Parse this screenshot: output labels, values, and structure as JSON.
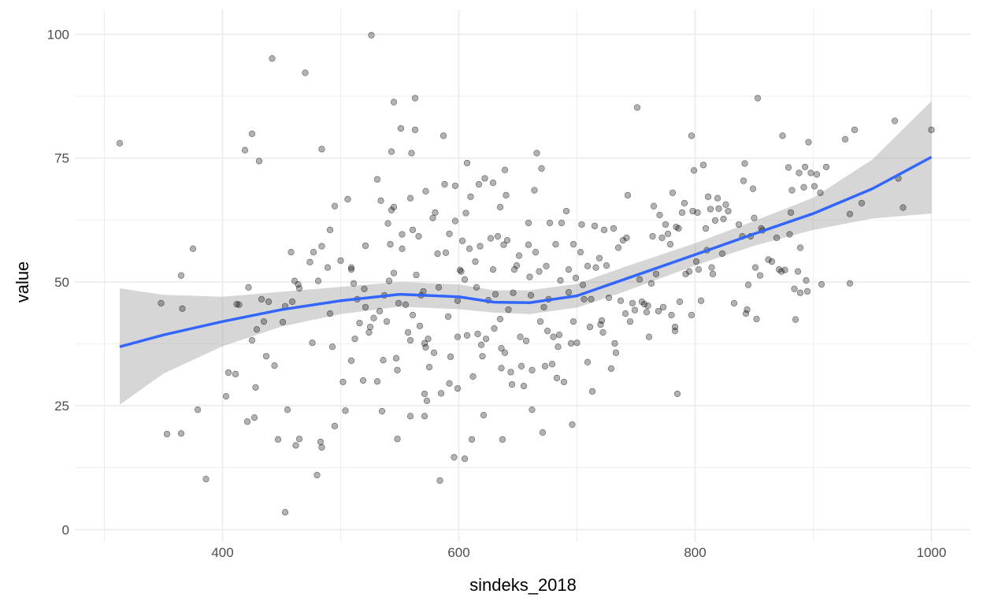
{
  "chart_data": {
    "type": "scatter",
    "title": "",
    "xlabel": "sindeks_2018",
    "ylabel": "value",
    "xlim": [
      275,
      1033
    ],
    "ylim": [
      -2.5,
      105
    ],
    "xticks": [
      400,
      600,
      800,
      1000
    ],
    "yticks": [
      0,
      25,
      50,
      75,
      100
    ],
    "xtick_labels": [
      "400",
      "600",
      "800",
      "1000"
    ],
    "ytick_labels": [
      "0",
      "25",
      "50",
      "75",
      "100"
    ],
    "grid": true,
    "legend": "none",
    "colors": {
      "points": "#000000",
      "smooth": "#3366FF",
      "band": "#999999",
      "grid": "#ebebeb"
    },
    "points": [
      [
        313,
        78
      ],
      [
        348,
        45.7
      ],
      [
        353,
        19.3
      ],
      [
        365,
        19.4
      ],
      [
        365,
        51.3
      ],
      [
        366,
        44.6
      ],
      [
        375,
        56.7
      ],
      [
        379,
        24.2
      ],
      [
        386,
        10.2
      ],
      [
        403,
        26.9
      ],
      [
        405,
        31.7
      ],
      [
        411,
        31.4
      ],
      [
        412,
        45.5
      ],
      [
        414,
        45.4
      ],
      [
        419,
        76.6
      ],
      [
        421,
        21.8
      ],
      [
        422,
        48.9
      ],
      [
        425,
        38.2
      ],
      [
        425,
        79.9
      ],
      [
        427,
        22.6
      ],
      [
        428,
        28.7
      ],
      [
        429,
        40.4
      ],
      [
        431,
        74.4
      ],
      [
        433,
        46.5
      ],
      [
        435,
        42
      ],
      [
        437,
        35
      ],
      [
        439,
        46
      ],
      [
        442,
        95.1
      ],
      [
        444,
        33.1
      ],
      [
        447,
        18.2
      ],
      [
        451,
        41.9
      ],
      [
        453,
        3.5
      ],
      [
        453,
        45.1
      ],
      [
        455,
        24.2
      ],
      [
        458,
        56
      ],
      [
        459,
        46
      ],
      [
        461,
        50.2
      ],
      [
        462,
        17
      ],
      [
        464,
        49.5
      ],
      [
        465,
        48.7
      ],
      [
        465,
        18.3
      ],
      [
        470,
        92.2
      ],
      [
        474,
        54
      ],
      [
        476,
        37.7
      ],
      [
        477,
        56
      ],
      [
        480,
        11
      ],
      [
        481,
        50.2
      ],
      [
        483,
        17.7
      ],
      [
        484,
        16.6
      ],
      [
        484,
        57.2
      ],
      [
        484,
        76.8
      ],
      [
        489,
        52.9
      ],
      [
        491,
        60.5
      ],
      [
        491,
        43.6
      ],
      [
        493,
        36.9
      ],
      [
        495,
        20.9
      ],
      [
        495,
        65.3
      ],
      [
        500,
        54.3
      ],
      [
        502,
        29.8
      ],
      [
        504,
        24
      ],
      [
        506,
        66.7
      ],
      [
        509,
        52.9
      ],
      [
        509,
        34.1
      ],
      [
        509,
        52.5
      ],
      [
        511,
        49.7
      ],
      [
        512,
        38.5
      ],
      [
        514,
        46.5
      ],
      [
        516,
        41.7
      ],
      [
        519,
        30.1
      ],
      [
        520,
        48.6
      ],
      [
        521,
        57.3
      ],
      [
        521,
        44.9
      ],
      [
        524,
        39.8
      ],
      [
        525,
        40.9
      ],
      [
        526,
        99.8
      ],
      [
        528,
        42.7
      ],
      [
        531,
        29.9
      ],
      [
        531,
        70.7
      ],
      [
        533,
        44.1
      ],
      [
        534,
        66.4
      ],
      [
        535,
        23.9
      ],
      [
        536,
        34.2
      ],
      [
        537,
        47.3
      ],
      [
        539,
        42
      ],
      [
        540,
        61.8
      ],
      [
        541,
        50.2
      ],
      [
        542,
        57.6
      ],
      [
        543,
        76.3
      ],
      [
        543,
        64.5
      ],
      [
        545,
        65.1
      ],
      [
        545,
        86.3
      ],
      [
        545,
        51.8
      ],
      [
        547,
        34.6
      ],
      [
        548,
        32.2
      ],
      [
        548,
        18.3
      ],
      [
        549,
        45.7
      ],
      [
        551,
        81
      ],
      [
        552,
        59.6
      ],
      [
        552,
        56.7
      ],
      [
        555,
        45.4
      ],
      [
        557,
        39.8
      ],
      [
        559,
        38.2
      ],
      [
        559,
        66.9
      ],
      [
        559,
        22.9
      ],
      [
        560,
        76
      ],
      [
        561,
        43.3
      ],
      [
        561,
        60.5
      ],
      [
        563,
        87.1
      ],
      [
        563,
        80.7
      ],
      [
        564,
        51.4
      ],
      [
        566,
        59.2
      ],
      [
        567,
        41.1
      ],
      [
        568,
        47.3
      ],
      [
        570,
        48.1
      ],
      [
        571,
        22.9
      ],
      [
        571,
        27.4
      ],
      [
        571,
        37.6
      ],
      [
        572,
        36.8
      ],
      [
        572,
        68.3
      ],
      [
        573,
        26
      ],
      [
        574,
        38.5
      ],
      [
        575,
        32.8
      ],
      [
        578,
        62.9
      ],
      [
        579,
        35.7
      ],
      [
        580,
        64
      ],
      [
        582,
        55.7
      ],
      [
        583,
        48.9
      ],
      [
        584,
        9.9
      ],
      [
        585,
        27.5
      ],
      [
        587,
        79.5
      ],
      [
        588,
        69.7
      ],
      [
        589,
        55.9
      ],
      [
        591,
        43
      ],
      [
        592,
        59.7
      ],
      [
        592,
        29.5
      ],
      [
        593,
        34.9
      ],
      [
        596,
        14.6
      ],
      [
        597,
        69.4
      ],
      [
        597,
        62.3
      ],
      [
        599,
        28.5
      ],
      [
        599,
        38.9
      ],
      [
        599,
        46.2
      ],
      [
        601,
        52.4
      ],
      [
        602,
        52.1
      ],
      [
        603,
        58.3
      ],
      [
        605,
        14.3
      ],
      [
        605,
        50.5
      ],
      [
        606,
        63.9
      ],
      [
        607,
        74
      ],
      [
        607,
        39.2
      ],
      [
        609,
        56.7
      ],
      [
        610,
        67.2
      ],
      [
        611,
        18.2
      ],
      [
        612,
        30.9
      ],
      [
        614,
        54.1
      ],
      [
        615,
        48.9
      ],
      [
        616,
        39.5
      ],
      [
        617,
        69.7
      ],
      [
        618,
        57.2
      ],
      [
        619,
        37.3
      ],
      [
        620,
        35
      ],
      [
        621,
        23.1
      ],
      [
        622,
        70.9
      ],
      [
        623,
        38.5
      ],
      [
        625,
        46.3
      ],
      [
        627,
        58.8
      ],
      [
        629,
        52.5
      ],
      [
        629,
        70
      ],
      [
        630,
        40.6
      ],
      [
        631,
        47.5
      ],
      [
        633,
        59.2
      ],
      [
        635,
        65.1
      ],
      [
        635,
        42.5
      ],
      [
        636,
        32.6
      ],
      [
        636,
        36.6
      ],
      [
        637,
        18.2
      ],
      [
        638,
        57.5
      ],
      [
        639,
        35.7
      ],
      [
        639,
        72.6
      ],
      [
        640,
        67.5
      ],
      [
        641,
        58.4
      ],
      [
        642,
        44.4
      ],
      [
        644,
        31.8
      ],
      [
        645,
        29.3
      ],
      [
        646,
        47.8
      ],
      [
        647,
        52.5
      ],
      [
        649,
        53.3
      ],
      [
        651,
        55.3
      ],
      [
        652,
        38.9
      ],
      [
        653,
        33
      ],
      [
        655,
        29
      ],
      [
        657,
        38.1
      ],
      [
        659,
        57.5
      ],
      [
        659,
        61.9
      ],
      [
        660,
        51
      ],
      [
        661,
        47.3
      ],
      [
        662,
        32.2
      ],
      [
        662,
        24.2
      ],
      [
        664,
        68.5
      ],
      [
        665,
        56
      ],
      [
        666,
        76
      ],
      [
        668,
        52.1
      ],
      [
        669,
        42
      ],
      [
        670,
        72.9
      ],
      [
        671,
        19.6
      ],
      [
        672,
        44.9
      ],
      [
        673,
        33
      ],
      [
        674,
        53.2
      ],
      [
        675,
        40.1
      ],
      [
        676,
        46.5
      ],
      [
        677,
        61.9
      ],
      [
        679,
        33.4
      ],
      [
        680,
        38.9
      ],
      [
        682,
        57.6
      ],
      [
        683,
        30.6
      ],
      [
        684,
        36.9
      ],
      [
        685,
        39.3
      ],
      [
        686,
        50.3
      ],
      [
        687,
        61.9
      ],
      [
        689,
        29.8
      ],
      [
        691,
        64.3
      ],
      [
        693,
        52.5
      ],
      [
        693,
        47.9
      ],
      [
        695,
        37.6
      ],
      [
        696,
        21.2
      ],
      [
        697,
        42
      ],
      [
        697,
        57.6
      ],
      [
        699,
        50.8
      ],
      [
        700,
        37.7
      ],
      [
        703,
        56
      ],
      [
        704,
        61.6
      ],
      [
        705,
        49.4
      ],
      [
        706,
        46.5
      ],
      [
        709,
        53.2
      ],
      [
        709,
        33.8
      ],
      [
        711,
        40.9
      ],
      [
        712,
        46.5
      ],
      [
        713,
        27.9
      ],
      [
        715,
        61.3
      ],
      [
        716,
        52.9
      ],
      [
        719,
        54.8
      ],
      [
        720,
        41.4
      ],
      [
        721,
        42.2
      ],
      [
        722,
        39.8
      ],
      [
        723,
        60.5
      ],
      [
        725,
        53.3
      ],
      [
        727,
        46.8
      ],
      [
        729,
        32.5
      ],
      [
        731,
        60.8
      ],
      [
        732,
        37.6
      ],
      [
        733,
        35.7
      ],
      [
        735,
        56.9
      ],
      [
        737,
        46.2
      ],
      [
        739,
        58.4
      ],
      [
        741,
        43.6
      ],
      [
        742,
        58.9
      ],
      [
        743,
        67.5
      ],
      [
        745,
        42
      ],
      [
        747,
        45.7
      ],
      [
        749,
        44.3
      ],
      [
        751,
        85.2
      ],
      [
        753,
        50.5
      ],
      [
        755,
        46
      ],
      [
        757,
        45.5
      ],
      [
        759,
        43.9
      ],
      [
        760,
        45.2
      ],
      [
        761,
        38.9
      ],
      [
        763,
        49.7
      ],
      [
        764,
        59.2
      ],
      [
        765,
        65.3
      ],
      [
        767,
        51.6
      ],
      [
        769,
        44.1
      ],
      [
        770,
        63.5
      ],
      [
        772,
        58.9
      ],
      [
        773,
        44.9
      ],
      [
        775,
        61.6
      ],
      [
        777,
        59.7
      ],
      [
        779,
        57.6
      ],
      [
        780,
        43.3
      ],
      [
        781,
        68
      ],
      [
        783,
        40.9
      ],
      [
        783,
        40.1
      ],
      [
        784,
        61.1
      ],
      [
        785,
        27.4
      ],
      [
        786,
        60.8
      ],
      [
        787,
        46
      ],
      [
        789,
        64
      ],
      [
        791,
        65.9
      ],
      [
        792,
        51.6
      ],
      [
        795,
        52.1
      ],
      [
        797,
        43.3
      ],
      [
        797,
        79.5
      ],
      [
        798,
        64.3
      ],
      [
        799,
        72.5
      ],
      [
        801,
        54.1
      ],
      [
        802,
        64
      ],
      [
        803,
        52.5
      ],
      [
        805,
        46.2
      ],
      [
        807,
        73.6
      ],
      [
        809,
        60.8
      ],
      [
        810,
        56.4
      ],
      [
        811,
        67.2
      ],
      [
        813,
        64.7
      ],
      [
        814,
        52.9
      ],
      [
        815,
        51.6
      ],
      [
        817,
        62.4
      ],
      [
        819,
        66.9
      ],
      [
        820,
        64.8
      ],
      [
        823,
        55.7
      ],
      [
        824,
        62.7
      ],
      [
        826,
        65.6
      ],
      [
        828,
        64.3
      ],
      [
        833,
        45.7
      ],
      [
        837,
        61.6
      ],
      [
        840,
        59.2
      ],
      [
        841,
        70.4
      ],
      [
        843,
        43.6
      ],
      [
        842,
        73.9
      ],
      [
        844,
        44.4
      ],
      [
        845,
        49.4
      ],
      [
        847,
        59.2
      ],
      [
        849,
        68.8
      ],
      [
        850,
        62.9
      ],
      [
        851,
        52.9
      ],
      [
        852,
        42.5
      ],
      [
        853,
        87.1
      ],
      [
        855,
        51.3
      ],
      [
        856,
        60.8
      ],
      [
        857,
        60.4
      ],
      [
        862,
        54.5
      ],
      [
        865,
        54.1
      ],
      [
        869,
        58.9
      ],
      [
        871,
        52.5
      ],
      [
        873,
        52.1
      ],
      [
        874,
        79.5
      ],
      [
        876,
        52.4
      ],
      [
        879,
        73.1
      ],
      [
        880,
        59.6
      ],
      [
        881,
        64
      ],
      [
        882,
        68.5
      ],
      [
        884,
        48.6
      ],
      [
        885,
        42.4
      ],
      [
        887,
        52.1
      ],
      [
        888,
        72
      ],
      [
        889,
        47.8
      ],
      [
        889,
        56.9
      ],
      [
        892,
        69.1
      ],
      [
        893,
        73.2
      ],
      [
        894,
        50.3
      ],
      [
        895,
        48.1
      ],
      [
        896,
        78.2
      ],
      [
        898,
        72
      ],
      [
        901,
        69.3
      ],
      [
        903,
        71.7
      ],
      [
        906,
        68
      ],
      [
        907,
        49.5
      ],
      [
        911,
        73.2
      ],
      [
        927,
        78.8
      ],
      [
        931,
        63.7
      ],
      [
        931,
        49.7
      ],
      [
        935,
        80.7
      ],
      [
        941,
        65.9
      ],
      [
        969,
        82.5
      ],
      [
        972,
        70.9
      ],
      [
        976,
        65
      ],
      [
        1000,
        80.7
      ]
    ],
    "smooth": {
      "method": "loess",
      "x": [
        313,
        350,
        400,
        450,
        500,
        550,
        600,
        630,
        660,
        700,
        740,
        800,
        850,
        900,
        950,
        1000
      ],
      "y": [
        36.9,
        39.3,
        42.0,
        44.4,
        46.2,
        47.5,
        47.0,
        45.9,
        45.8,
        47.2,
        50.5,
        55.5,
        59.7,
        63.8,
        68.8,
        75.2
      ],
      "lower": [
        25.2,
        31.5,
        37.0,
        41.0,
        43.5,
        45.0,
        44.5,
        43.8,
        43.5,
        44.8,
        48.0,
        53.3,
        57.3,
        60.5,
        62.8,
        63.8
      ],
      "upper": [
        48.7,
        47.4,
        47.0,
        48.0,
        49.0,
        50.0,
        49.5,
        48.3,
        48.3,
        49.6,
        53.0,
        57.8,
        62.3,
        67.0,
        74.7,
        86.5
      ]
    }
  }
}
